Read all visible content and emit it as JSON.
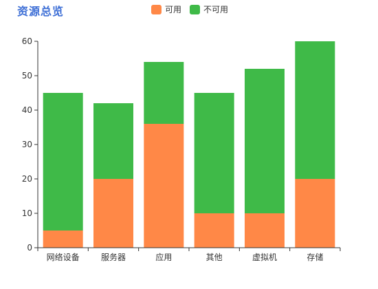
{
  "chart_data": {
    "type": "bar",
    "stacked": true,
    "title": "资源总览",
    "categories": [
      "网络设备",
      "服务器",
      "应用",
      "其他",
      "虚拟机",
      "存储"
    ],
    "series": [
      {
        "name": "可用",
        "color": "#ff8847",
        "values": [
          5,
          20,
          36,
          10,
          10,
          20
        ]
      },
      {
        "name": "不可用",
        "color": "#3fba48",
        "values": [
          40,
          22,
          18,
          35,
          42,
          40
        ]
      }
    ],
    "ylim": [
      0,
      60
    ],
    "yticks": [
      0,
      10,
      20,
      30,
      40,
      50,
      60
    ],
    "xlabel": "",
    "ylabel": "",
    "grid": false,
    "legend_position": "top-center"
  }
}
